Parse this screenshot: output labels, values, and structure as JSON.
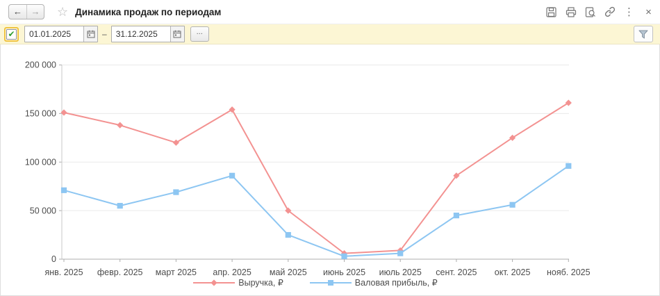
{
  "window": {
    "title": "Динамика продаж по периодам",
    "nav": {
      "back_glyph": "←",
      "forward_glyph": "→"
    },
    "favorite_glyph": "☆",
    "toolbar_icons": [
      "save-icon",
      "print-icon",
      "preview-icon",
      "link-icon",
      "more-icon",
      "close-icon"
    ],
    "more_glyph": "⋮",
    "close_glyph": "×"
  },
  "filter_bar": {
    "checkbox_checked": true,
    "check_glyph": "✔",
    "date_from": "01.01.2025",
    "date_to": "31.12.2025",
    "range_separator": "–",
    "more_button_label": "...",
    "filter_icon": "funnel-icon"
  },
  "chart_data": {
    "type": "line",
    "title": "",
    "categories": [
      "янв. 2025",
      "февр. 2025",
      "март 2025",
      "апр. 2025",
      "май 2025",
      "июнь 2025",
      "июль 2025",
      "сент. 2025",
      "окт. 2025",
      "нояб. 2025"
    ],
    "series": [
      {
        "name": "Выручка, ₽",
        "color": "#f39291",
        "marker": "diamond",
        "values": [
          151000,
          138000,
          120000,
          154000,
          50000,
          6000,
          9000,
          86000,
          125000,
          161000
        ]
      },
      {
        "name": "Валовая прибыль, ₽",
        "color": "#8dc6f2",
        "marker": "square",
        "values": [
          71000,
          55000,
          69000,
          86000,
          25000,
          3000,
          6000,
          45000,
          56000,
          96000
        ]
      }
    ],
    "ylim": [
      0,
      200000
    ],
    "ytick_step": 50000,
    "yticklabels": [
      "0",
      "50 000",
      "100 000",
      "150 000",
      "200 000"
    ],
    "grid": true,
    "legend_position": "bottom"
  },
  "colors": {
    "filter_bar_bg": "#fcf6d4",
    "checkbox_ring": "#efc23d",
    "check_green": "#2f9e2f",
    "grid_line": "#eaeaea",
    "axis_line": "#adadad",
    "tick_text": "#4c4c4c"
  }
}
